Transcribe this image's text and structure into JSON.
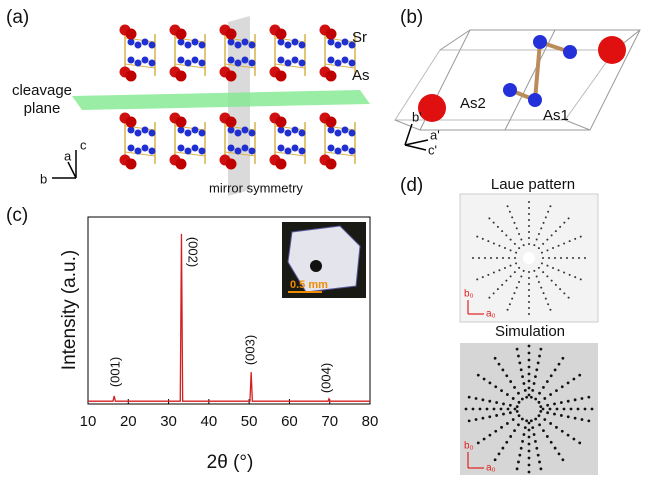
{
  "panel_labels": [
    "(a)",
    "(b)",
    "(c)",
    "(d)"
  ],
  "panel_a": {
    "atom_labels": [
      "Sr",
      "As"
    ],
    "cleavage_label": [
      "cleavage",
      "plane"
    ],
    "mirror_label": "mirror symmetry",
    "axes": [
      "c",
      "a",
      "b"
    ]
  },
  "panel_b": {
    "atom_labels": [
      "As2",
      "As1"
    ],
    "axes": [
      "b'",
      "a'",
      "c'"
    ]
  },
  "chart_data": {
    "type": "line",
    "xlabel": "2θ (°)",
    "ylabel": "Intensity (a.u.)",
    "x": [
      10,
      16.2,
      16.5,
      16.8,
      32.9,
      33.2,
      33.5,
      50.2,
      50.5,
      50.8,
      69.6,
      69.8,
      70.0,
      80
    ],
    "values": [
      1.5,
      1.5,
      4.3,
      1.5,
      1.5,
      91,
      1.5,
      1.5,
      17,
      1.5,
      1.5,
      2.7,
      1.5,
      1.5
    ],
    "color": "#d42020",
    "xlim": [
      10,
      80
    ],
    "ylim": [
      0,
      100
    ],
    "xticks": [
      10,
      20,
      30,
      40,
      50,
      60,
      70,
      80
    ],
    "annotations": [
      "(001)",
      "(002)",
      "(003)",
      "(004)"
    ],
    "inset_scale": "0.5 mm",
    "grid": false
  },
  "panel_d": {
    "titles": [
      "Laue pattern",
      "Simulation"
    ],
    "axes": [
      "b₀",
      "a₀"
    ]
  }
}
